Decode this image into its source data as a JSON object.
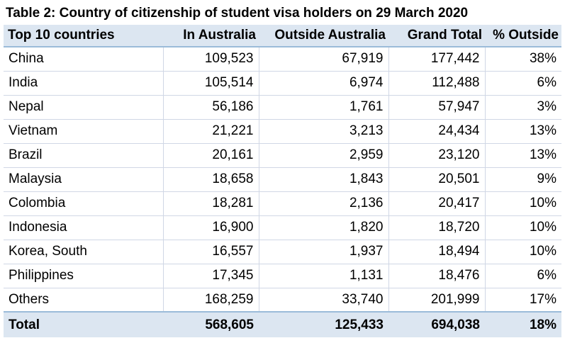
{
  "title": "Table 2: Country of citizenship of student visa holders on 29 March 2020",
  "columns": [
    "Top 10 countries",
    "In Australia",
    "Outside Australia",
    "Grand Total",
    "% Outside"
  ],
  "rows": [
    {
      "country": "China",
      "in_australia": "109,523",
      "outside_australia": "67,919",
      "grand_total": "177,442",
      "pct_outside": "38%"
    },
    {
      "country": "India",
      "in_australia": "105,514",
      "outside_australia": "6,974",
      "grand_total": "112,488",
      "pct_outside": "6%"
    },
    {
      "country": "Nepal",
      "in_australia": "56,186",
      "outside_australia": "1,761",
      "grand_total": "57,947",
      "pct_outside": "3%"
    },
    {
      "country": "Vietnam",
      "in_australia": "21,221",
      "outside_australia": "3,213",
      "grand_total": "24,434",
      "pct_outside": "13%"
    },
    {
      "country": "Brazil",
      "in_australia": "20,161",
      "outside_australia": "2,959",
      "grand_total": "23,120",
      "pct_outside": "13%"
    },
    {
      "country": "Malaysia",
      "in_australia": "18,658",
      "outside_australia": "1,843",
      "grand_total": "20,501",
      "pct_outside": "9%"
    },
    {
      "country": "Colombia",
      "in_australia": "18,281",
      "outside_australia": "2,136",
      "grand_total": "20,417",
      "pct_outside": "10%"
    },
    {
      "country": "Indonesia",
      "in_australia": "16,900",
      "outside_australia": "1,820",
      "grand_total": "18,720",
      "pct_outside": "10%"
    },
    {
      "country": "Korea, South",
      "in_australia": "16,557",
      "outside_australia": "1,937",
      "grand_total": "18,494",
      "pct_outside": "10%"
    },
    {
      "country": "Philippines",
      "in_australia": "17,345",
      "outside_australia": "1,131",
      "grand_total": "18,476",
      "pct_outside": "6%"
    },
    {
      "country": "Others",
      "in_australia": "168,259",
      "outside_australia": "33,740",
      "grand_total": "201,999",
      "pct_outside": "17%"
    }
  ],
  "total": {
    "label": "Total",
    "in_australia": "568,605",
    "outside_australia": "125,433",
    "grand_total": "694,038",
    "pct_outside": "18%"
  },
  "colors": {
    "header_fill": "#dce6f1",
    "header_rule": "#9bbbd9",
    "grid": "#d0d7e5"
  }
}
